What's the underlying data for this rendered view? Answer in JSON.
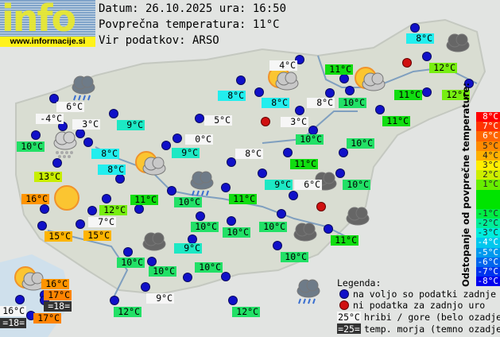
{
  "header": {
    "logo_text": "info",
    "logo_url": "www.informacije.si",
    "date_line": "Datum: 26.10.2025 ura: 16:50",
    "avg_temp_line": "Povprečna temperatura: 11°C",
    "source_line": "Vir podatkov: ARSO"
  },
  "colors": {
    "white": "#f6f6f6",
    "cyan": "#22eeee",
    "turq": "#1de8c4",
    "green10": "#22e066",
    "green11": "#11dd11",
    "lime12": "#77ee11",
    "lime13": "#c8ee00",
    "orange15": "#ffb400",
    "orange16": "#ff9400",
    "orange17": "#ff8400",
    "dark": "#333333"
  },
  "stations": [
    {
      "temp": "8°C",
      "bg": "#22eeee"
    },
    {
      "temp": "4°C",
      "bg": "#f6f6f6"
    },
    {
      "temp": "11°C",
      "bg": "#11dd11"
    },
    {
      "temp": "12°C",
      "bg": "#77ee11"
    },
    {
      "temp": "8°C",
      "bg": "#22eeee"
    },
    {
      "temp": "8°C",
      "bg": "#22eeee"
    },
    {
      "temp": "8°C",
      "bg": "#f6f6f6"
    },
    {
      "temp": "10°C",
      "bg": "#22e066"
    },
    {
      "temp": "11°C",
      "bg": "#11dd11"
    },
    {
      "temp": "12°C",
      "bg": "#77ee11"
    },
    {
      "temp": "6°C",
      "bg": "#f6f6f6"
    },
    {
      "temp": "-4°C",
      "bg": "#f6f6f6"
    },
    {
      "temp": "3°C",
      "bg": "#f6f6f6"
    },
    {
      "temp": "9°C",
      "bg": "#1de8c4"
    },
    {
      "temp": "5°C",
      "bg": "#f6f6f6"
    },
    {
      "temp": "3°C",
      "bg": "#f6f6f6"
    },
    {
      "temp": "11°C",
      "bg": "#11dd11"
    },
    {
      "temp": "10°C",
      "bg": "#22e066"
    },
    {
      "temp": "8°C",
      "bg": "#22eeee"
    },
    {
      "temp": "0°C",
      "bg": "#f6f6f6"
    },
    {
      "temp": "9°C",
      "bg": "#1de8c4"
    },
    {
      "temp": "10°C",
      "bg": "#22e066"
    },
    {
      "temp": "10°C",
      "bg": "#22e066"
    },
    {
      "temp": "8°C",
      "bg": "#f6f6f6"
    },
    {
      "temp": "8°C",
      "bg": "#22eeee"
    },
    {
      "temp": "13°C",
      "bg": "#c8ee00"
    },
    {
      "temp": "11°C",
      "bg": "#11dd11"
    },
    {
      "temp": "9°C",
      "bg": "#1de8c4"
    },
    {
      "temp": "6°C",
      "bg": "#f6f6f6"
    },
    {
      "temp": "10°C",
      "bg": "#22e066"
    },
    {
      "temp": "16°C",
      "bg": "#ff9400"
    },
    {
      "temp": "11°C",
      "bg": "#11dd11"
    },
    {
      "temp": "12°C",
      "bg": "#77ee11"
    },
    {
      "temp": "10°C",
      "bg": "#22e066"
    },
    {
      "temp": "11°C",
      "bg": "#11dd11"
    },
    {
      "temp": "7°C",
      "bg": "#f6f6f6"
    },
    {
      "temp": "15°C",
      "bg": "#ffb400"
    },
    {
      "temp": "15°C",
      "bg": "#ffb400"
    },
    {
      "temp": "10°C",
      "bg": "#22e066"
    },
    {
      "temp": "10°C",
      "bg": "#22e066"
    },
    {
      "temp": "10°C",
      "bg": "#22e066"
    },
    {
      "temp": "9°C",
      "bg": "#1de8c4"
    },
    {
      "temp": "11°C",
      "bg": "#11dd11"
    },
    {
      "temp": "10°C",
      "bg": "#22e066"
    },
    {
      "temp": "10°C",
      "bg": "#22e066"
    },
    {
      "temp": "10°C",
      "bg": "#22e066"
    },
    {
      "temp": "10°C",
      "bg": "#22e066"
    },
    {
      "temp": "16°C",
      "bg": "#ff9400"
    },
    {
      "temp": "17°C",
      "bg": "#ff8400"
    },
    {
      "temp": "=18=",
      "bg": "#333333"
    },
    {
      "temp": "16°C",
      "bg": "#f6f6f6"
    },
    {
      "temp": "=18=",
      "bg": "#333333"
    },
    {
      "temp": "17°C",
      "bg": "#ff8400"
    },
    {
      "temp": "12°C",
      "bg": "#22e066"
    },
    {
      "temp": "9°C",
      "bg": "#f6f6f6"
    },
    {
      "temp": "12°C",
      "bg": "#22e066"
    }
  ],
  "weather_icons": [
    "rain-cloud",
    "snow-cloud",
    "sun-cloud",
    "rain-cloud",
    "sun",
    "sun-cloud",
    "sun-cloud",
    "dark-cloud",
    "dark-cloud",
    "dark-cloud",
    "dark-cloud",
    "dark-cloud",
    "sun-cloud",
    "rain-cloud"
  ],
  "scale": {
    "title": "Odstopanje od povprečne temperature:",
    "rows": [
      {
        "label": "8°C",
        "color": "#ff0000"
      },
      {
        "label": "7°C",
        "color": "#ff3300"
      },
      {
        "label": "6°C",
        "color": "#ff6600"
      },
      {
        "label": "5°C",
        "color": "#ff8a00"
      },
      {
        "label": "4°C",
        "color": "#ffb000"
      },
      {
        "label": "3°C",
        "color": "#ffee00"
      },
      {
        "label": "2°C",
        "color": "#ccee00"
      },
      {
        "label": "1°C",
        "color": "#66ee00"
      },
      {
        "label": "",
        "color": "#00e400"
      },
      {
        "label": "",
        "color": "#00e400"
      },
      {
        "label": "-1°C",
        "color": "#00ee44"
      },
      {
        "label": "-2°C",
        "color": "#00ee99"
      },
      {
        "label": "-3°C",
        "color": "#00eedd"
      },
      {
        "label": "-4°C",
        "color": "#00c8ee"
      },
      {
        "label": "-5°C",
        "color": "#0099ee"
      },
      {
        "label": "-6°C",
        "color": "#0066ee"
      },
      {
        "label": "-7°C",
        "color": "#0033ee"
      },
      {
        "label": "-8°C",
        "color": "#0000ee"
      }
    ]
  },
  "legend": {
    "title": "Legenda:",
    "available": "na voljo so podatki zadnje ure",
    "missing": "ni podatka za zadnjo uro",
    "mountain_sample": "25°C",
    "mountain_text": "hribi / gore (belo ozadje)",
    "sea_sample": "=25=",
    "sea_text": "temp. morja (temno ozadje)"
  }
}
